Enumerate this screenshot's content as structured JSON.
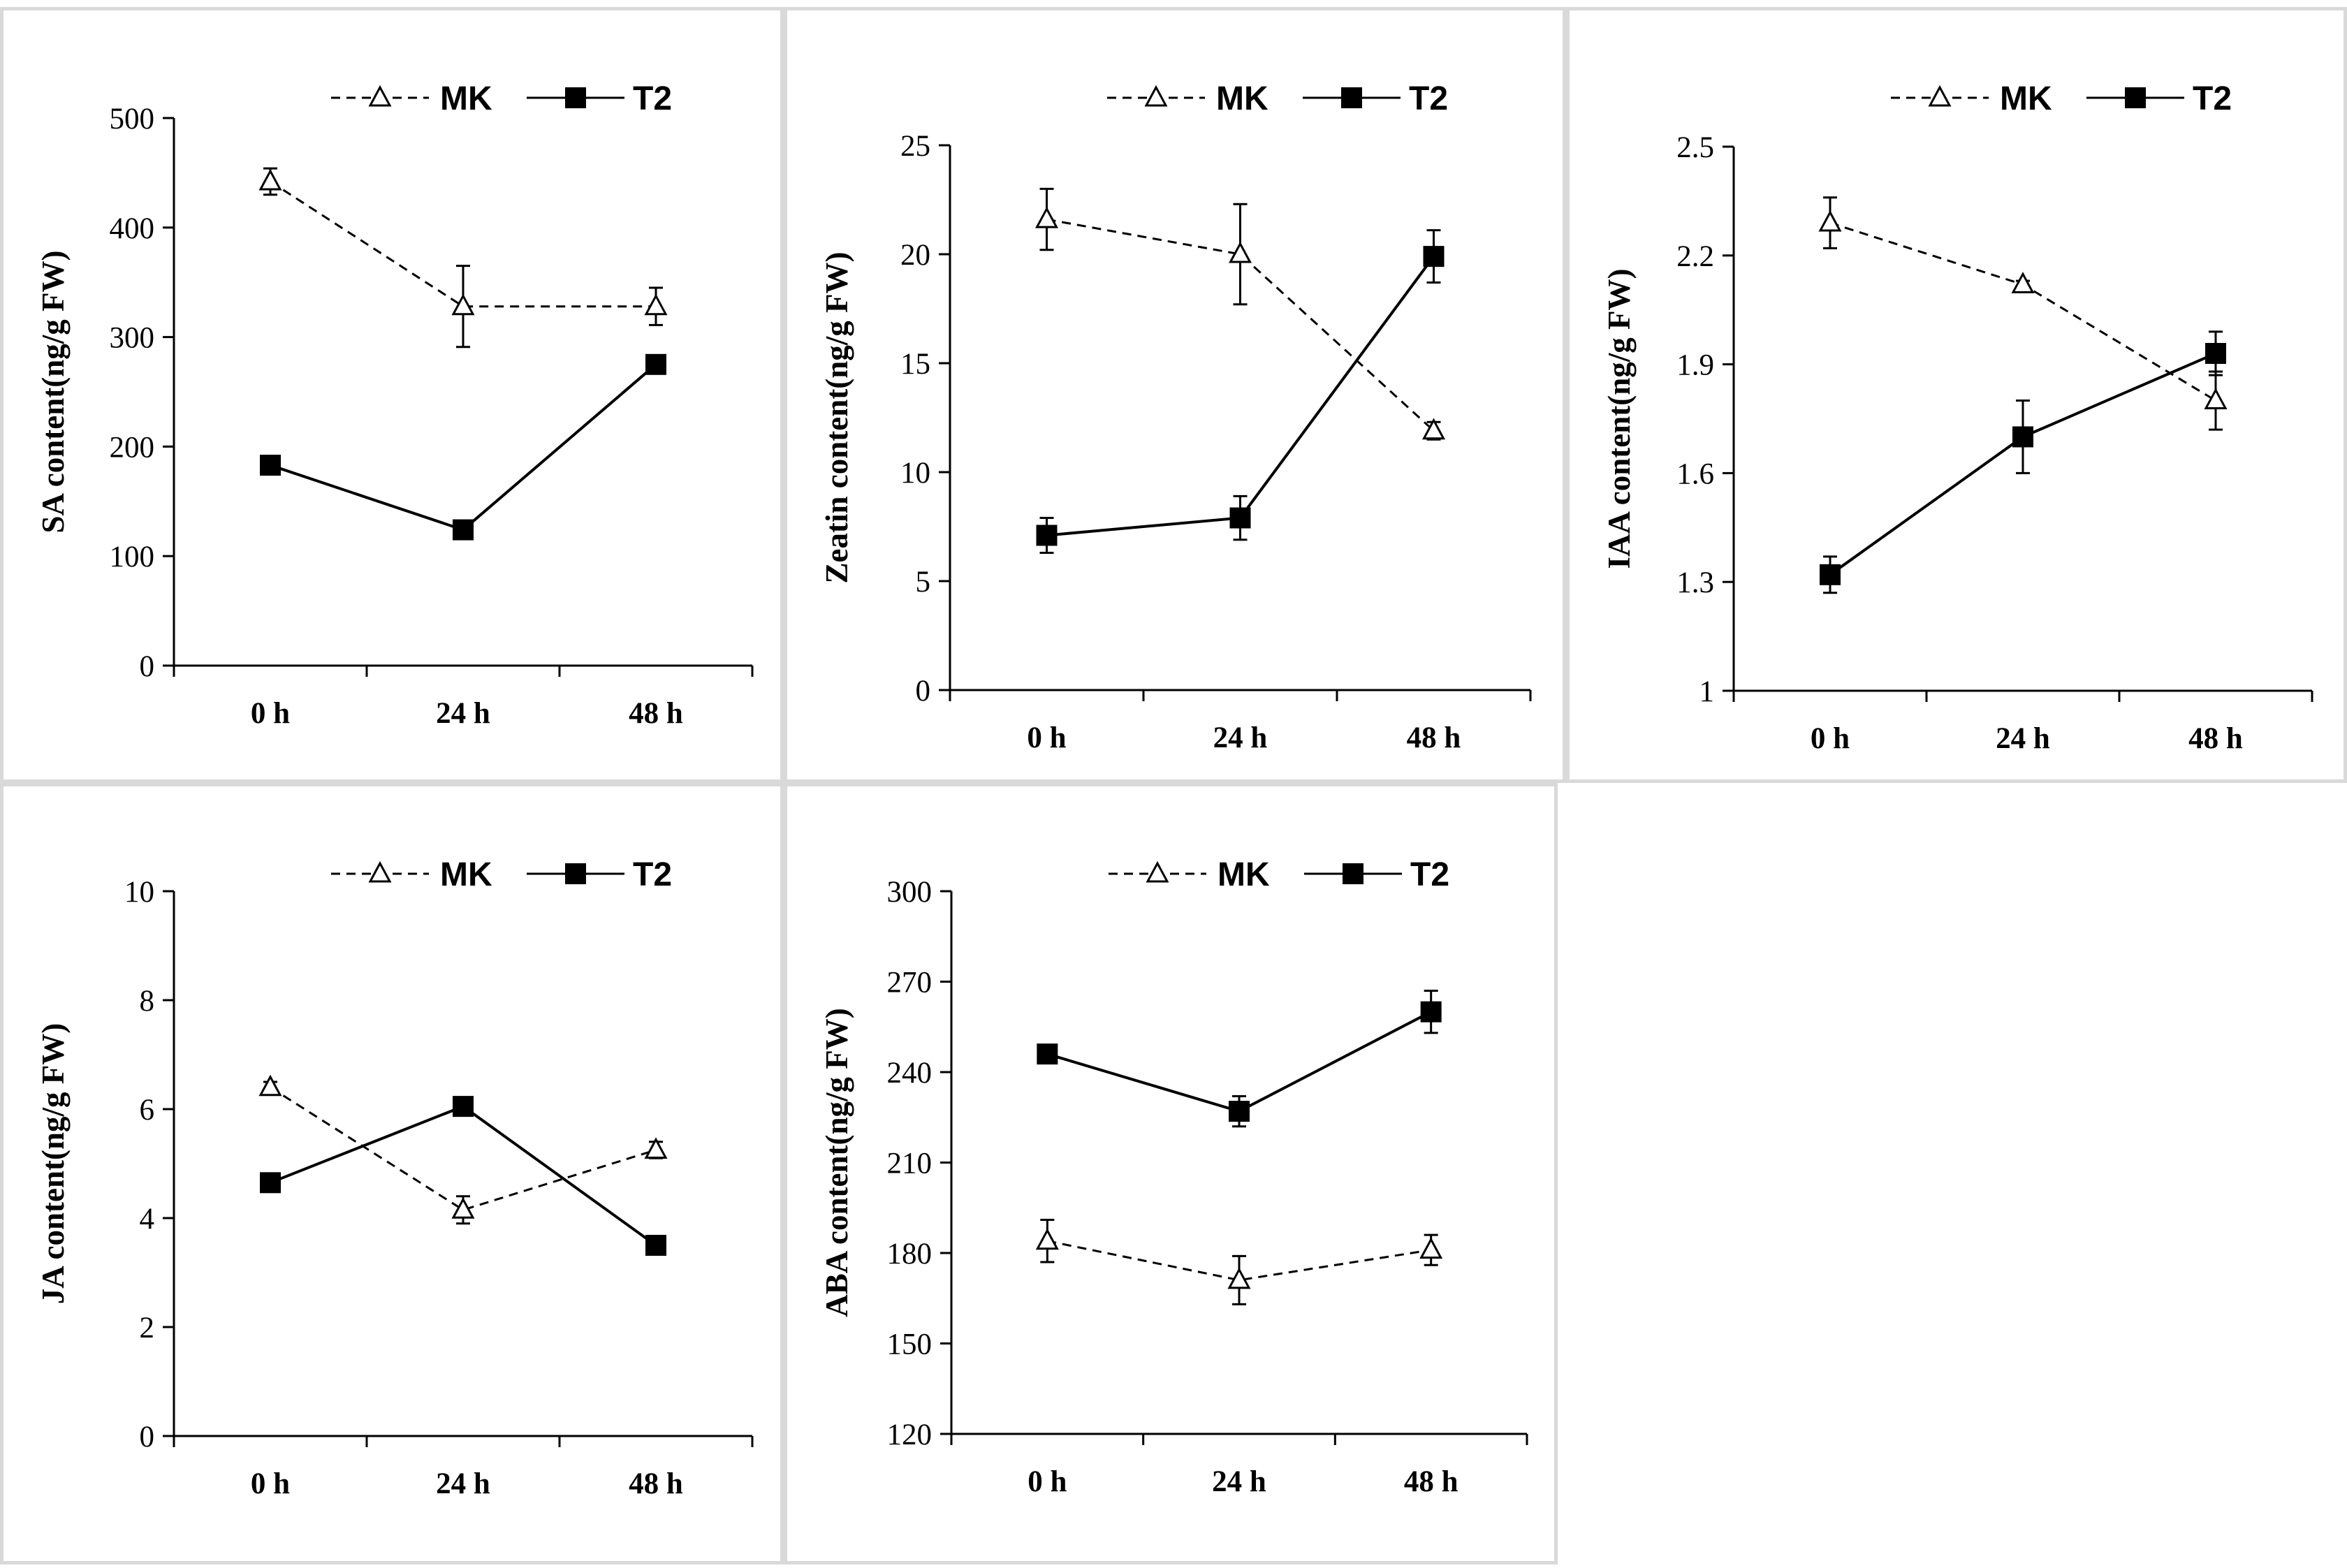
{
  "legend": {
    "series_a": "MK",
    "series_b": "T2"
  },
  "colors": {
    "line": "#000000",
    "panel_border": "#d9d9d9",
    "background": "#ffffff"
  },
  "chart_data": [
    {
      "id": "sa",
      "type": "line",
      "title": "",
      "xlabel": "",
      "ylabel": "SA content(ng/g FW)",
      "categories": [
        "0 h",
        "24 h",
        "48 h"
      ],
      "ylim": [
        0,
        500
      ],
      "yticks": [
        0,
        100,
        200,
        300,
        400,
        500
      ],
      "ytick_labels": [
        "0",
        "100",
        "200",
        "300",
        "400",
        "500"
      ],
      "series": [
        {
          "name": "MK",
          "style": "dashed-open-triangle",
          "values": [
            442,
            328,
            328
          ],
          "errors": [
            12,
            37,
            17
          ]
        },
        {
          "name": "T2",
          "style": "solid-filled-square",
          "values": [
            183,
            124,
            275
          ],
          "errors": [
            4,
            4,
            6
          ]
        }
      ]
    },
    {
      "id": "zeatin",
      "type": "line",
      "title": "",
      "xlabel": "",
      "ylabel": "Zeatin content(ng/g FW)",
      "categories": [
        "0 h",
        "24 h",
        "48 h"
      ],
      "ylim": [
        0,
        25
      ],
      "yticks": [
        0,
        5,
        10,
        15,
        20,
        25
      ],
      "ytick_labels": [
        "0",
        "5",
        "10",
        "15",
        "20",
        "25"
      ],
      "series": [
        {
          "name": "MK",
          "style": "dashed-open-triangle",
          "values": [
            21.6,
            20.0,
            11.9
          ],
          "errors": [
            1.4,
            2.3,
            0.4
          ]
        },
        {
          "name": "T2",
          "style": "solid-filled-square",
          "values": [
            7.1,
            7.9,
            19.9
          ],
          "errors": [
            0.8,
            1.0,
            1.2
          ]
        }
      ]
    },
    {
      "id": "iaa",
      "type": "line",
      "title": "",
      "xlabel": "",
      "ylabel": "IAA content(ng/g FW)",
      "categories": [
        "0 h",
        "24 h",
        "48 h"
      ],
      "ylim": [
        1,
        2.5
      ],
      "yticks": [
        1,
        1.3,
        1.6,
        1.9,
        2.2,
        2.5
      ],
      "ytick_labels": [
        "1",
        "1.3",
        "1.6",
        "1.9",
        "2.2",
        "2.5"
      ],
      "series": [
        {
          "name": "MK",
          "style": "dashed-open-triangle",
          "values": [
            2.29,
            2.12,
            1.8
          ],
          "errors": [
            0.07,
            0.01,
            0.08
          ]
        },
        {
          "name": "T2",
          "style": "solid-filled-square",
          "values": [
            1.32,
            1.7,
            1.93
          ],
          "errors": [
            0.05,
            0.1,
            0.06
          ]
        }
      ]
    },
    {
      "id": "ja",
      "type": "line",
      "title": "",
      "xlabel": "",
      "ylabel": "JA content(ng/g FW)",
      "categories": [
        "0 h",
        "24 h",
        "48 h"
      ],
      "ylim": [
        0,
        10
      ],
      "yticks": [
        0,
        2,
        4,
        6,
        8,
        10
      ],
      "ytick_labels": [
        "0",
        "2",
        "4",
        "6",
        "8",
        "10"
      ],
      "series": [
        {
          "name": "MK",
          "style": "dashed-open-triangle",
          "values": [
            6.4,
            4.15,
            5.25
          ],
          "errors": [
            0.1,
            0.25,
            0.15
          ]
        },
        {
          "name": "T2",
          "style": "solid-filled-square",
          "values": [
            4.65,
            6.05,
            3.5
          ],
          "errors": [
            0.1,
            0.1,
            0.1
          ]
        }
      ]
    },
    {
      "id": "aba",
      "type": "line",
      "title": "",
      "xlabel": "",
      "ylabel": "ABA content(ng/g FW)",
      "categories": [
        "0 h",
        "24 h",
        "48 h"
      ],
      "ylim": [
        120,
        300
      ],
      "yticks": [
        120,
        150,
        180,
        210,
        240,
        270,
        300
      ],
      "ytick_labels": [
        "120",
        "150",
        "180",
        "210",
        "240",
        "270",
        "300"
      ],
      "series": [
        {
          "name": "MK",
          "style": "dashed-open-triangle",
          "values": [
            184,
            171,
            181
          ],
          "errors": [
            7,
            8,
            5
          ]
        },
        {
          "name": "T2",
          "style": "solid-filled-square",
          "values": [
            246,
            227,
            260
          ],
          "errors": [
            2,
            5,
            7
          ]
        }
      ]
    }
  ]
}
